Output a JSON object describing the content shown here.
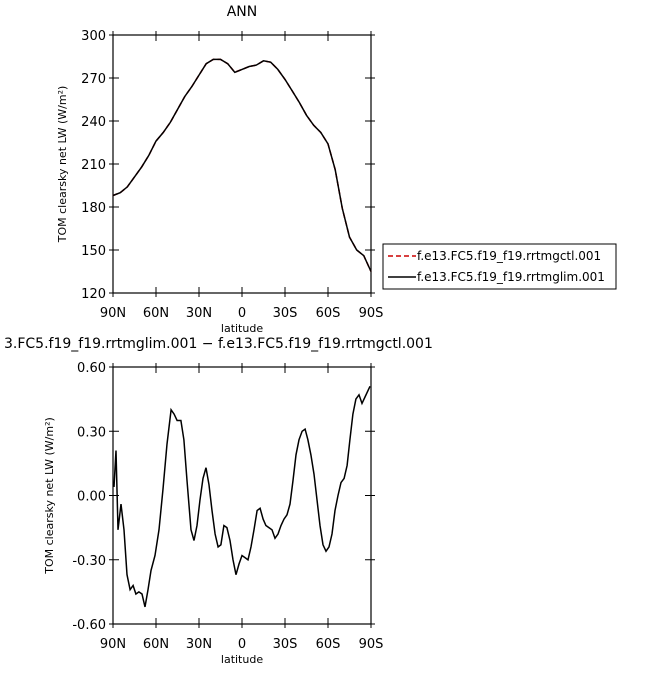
{
  "chart_data": [
    {
      "type": "line",
      "title": "ANN",
      "x_label": "latitude",
      "y_label": "TOM clearsky net LW (W/m²)",
      "xlim": [
        90,
        -90
      ],
      "ylim": [
        120,
        300
      ],
      "xticks": [
        {
          "value": 90,
          "label": "90N"
        },
        {
          "value": 60,
          "label": "60N"
        },
        {
          "value": 30,
          "label": "30N"
        },
        0,
        {
          "value": -30,
          "label": "30S"
        },
        {
          "value": -60,
          "label": "60S"
        },
        {
          "value": -90,
          "label": "90S"
        }
      ],
      "yticks": [
        120,
        150,
        180,
        210,
        240,
        270,
        300
      ],
      "x": [
        90,
        85,
        80,
        75,
        70,
        65,
        60,
        55,
        50,
        45,
        40,
        35,
        30,
        25,
        20,
        15,
        10,
        5,
        0,
        -5,
        -10,
        -15,
        -20,
        -25,
        -30,
        -35,
        -40,
        -45,
        -50,
        -55,
        -60,
        -65,
        -70,
        -75,
        -80,
        -85,
        -90
      ],
      "series": [
        {
          "name": "f.e13.FC5.f19_f19.rrtmgctl.001",
          "color": "#cc0000",
          "dashed": true,
          "values": [
            188,
            190,
            194,
            201,
            208,
            216,
            226,
            232,
            239,
            248,
            257,
            264,
            272,
            280,
            283,
            283,
            280,
            274,
            276,
            278,
            279,
            282,
            281,
            276,
            269,
            261,
            253,
            244,
            237,
            232,
            224,
            206,
            179,
            159,
            150,
            146,
            135
          ]
        },
        {
          "name": "f.e13.FC5.f19_f19.rrtmglim.001",
          "color": "#000000",
          "dashed": false,
          "values": [
            188,
            190,
            194,
            201,
            208,
            216,
            226,
            232,
            239,
            248,
            257,
            264,
            272,
            280,
            283,
            283,
            280,
            274,
            276,
            278,
            279,
            282,
            281,
            276,
            269,
            261,
            253,
            244,
            237,
            232,
            224,
            206,
            179,
            159,
            150,
            146,
            135
          ]
        }
      ]
    },
    {
      "type": "line",
      "title": "3.FC5.f19_f19.rrtmglim.001 − f.e13.FC5.f19_f19.rrtmgctl.001",
      "x_label": "latitude",
      "y_label": "TOM clearsky net LW (W/m²)",
      "xlim": [
        90,
        -90
      ],
      "ylim": [
        -0.6,
        0.6
      ],
      "xticks": [
        {
          "value": 90,
          "label": "90N"
        },
        {
          "value": 60,
          "label": "60N"
        },
        {
          "value": 30,
          "label": "30N"
        },
        0,
        {
          "value": -30,
          "label": "30S"
        },
        {
          "value": -60,
          "label": "60S"
        },
        {
          "value": -90,
          "label": "90S"
        }
      ],
      "yticks": [
        {
          "value": -0.6,
          "label": "-0.60"
        },
        {
          "value": -0.3,
          "label": "-0.30"
        },
        {
          "value": 0,
          "label": "0.00"
        },
        {
          "value": 0.3,
          "label": "0.30"
        },
        {
          "value": 0.6,
          "label": "0.60"
        }
      ],
      "x": [
        89.3,
        87.9,
        86.5,
        84.4,
        82.3,
        80.2,
        78.1,
        76.0,
        74.0,
        71.9,
        69.8,
        67.7,
        65.6,
        63.5,
        60.7,
        57.9,
        55.1,
        52.3,
        49.5,
        47.4,
        45.3,
        42.6,
        40.5,
        38.4,
        35.6,
        33.5,
        31.4,
        29.3,
        27.2,
        25.1,
        23.0,
        20.9,
        18.8,
        16.7,
        14.7,
        12.6,
        10.5,
        8.4,
        6.3,
        4.2,
        2.1,
        0.0,
        -2.1,
        -4.2,
        -6.3,
        -8.4,
        -10.5,
        -12.6,
        -14.7,
        -16.7,
        -18.8,
        -20.9,
        -23.0,
        -25.1,
        -27.2,
        -29.3,
        -31.4,
        -33.5,
        -35.6,
        -37.7,
        -39.8,
        -41.9,
        -44.0,
        -46.0,
        -48.1,
        -50.2,
        -52.3,
        -54.4,
        -56.5,
        -58.6,
        -60.7,
        -62.8,
        -64.9,
        -67.0,
        -69.1,
        -71.2,
        -73.3,
        -75.3,
        -77.4,
        -79.5,
        -81.6,
        -83.7,
        -85.8,
        -87.9,
        -89.3
      ],
      "series": [
        {
          "color": "#000000",
          "values": [
            0.04,
            0.21,
            -0.16,
            -0.04,
            -0.16,
            -0.37,
            -0.44,
            -0.42,
            -0.46,
            -0.45,
            -0.46,
            -0.52,
            -0.44,
            -0.35,
            -0.28,
            -0.16,
            0.03,
            0.24,
            0.4,
            0.38,
            0.35,
            0.35,
            0.26,
            0.07,
            -0.16,
            -0.21,
            -0.14,
            -0.02,
            0.08,
            0.13,
            0.05,
            -0.07,
            -0.18,
            -0.24,
            -0.23,
            -0.14,
            -0.15,
            -0.21,
            -0.3,
            -0.37,
            -0.32,
            -0.28,
            -0.29,
            -0.3,
            -0.24,
            -0.16,
            -0.07,
            -0.06,
            -0.11,
            -0.14,
            -0.15,
            -0.16,
            -0.2,
            -0.18,
            -0.14,
            -0.11,
            -0.09,
            -0.04,
            0.07,
            0.19,
            0.26,
            0.3,
            0.31,
            0.26,
            0.19,
            0.1,
            -0.02,
            -0.14,
            -0.23,
            -0.26,
            -0.24,
            -0.18,
            -0.07,
            0.0,
            0.06,
            0.08,
            0.14,
            0.26,
            0.38,
            0.45,
            0.47,
            0.43,
            0.46,
            0.49,
            0.51
          ]
        }
      ]
    }
  ]
}
